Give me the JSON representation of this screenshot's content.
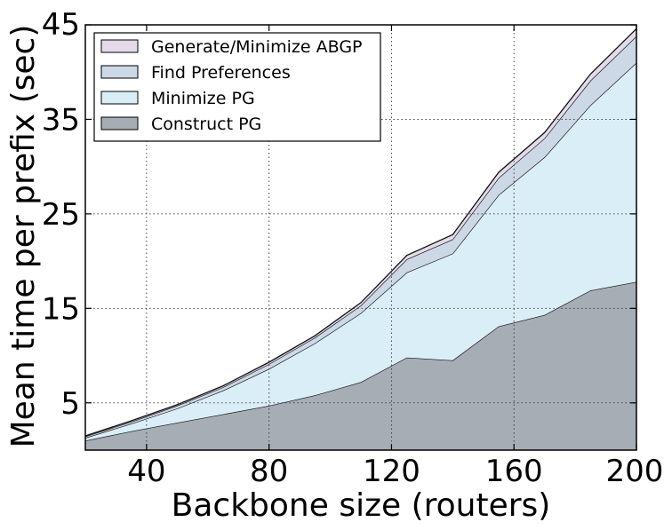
{
  "chart_data": {
    "type": "area",
    "stacked": true,
    "xlabel": "Backbone size (routers)",
    "ylabel": "Mean time per prefix (sec)",
    "xlim": [
      20,
      200
    ],
    "ylim": [
      0,
      45
    ],
    "xticks": [
      40,
      80,
      120,
      160,
      200
    ],
    "yticks": [
      5,
      15,
      25,
      35,
      45
    ],
    "grid": true,
    "legend_position": "top-left",
    "x": [
      20,
      35,
      50,
      65,
      80,
      95,
      110,
      125,
      140,
      155,
      170,
      185,
      200
    ],
    "series": [
      {
        "name": "Construct PG",
        "color": "#a6adb5",
        "values": [
          1.0,
          2.0,
          2.9,
          3.8,
          4.7,
          5.8,
          7.2,
          9.8,
          9.5,
          13.1,
          14.3,
          16.9,
          17.8
        ]
      },
      {
        "name": "Minimize PG",
        "color": "#daeef8",
        "values": [
          0.3,
          0.8,
          1.5,
          2.5,
          3.9,
          5.5,
          7.3,
          9.0,
          11.3,
          13.9,
          16.7,
          19.6,
          23.2
        ]
      },
      {
        "name": "Find Preferences",
        "color": "#ccd8e6",
        "values": [
          0.15,
          0.2,
          0.3,
          0.35,
          0.5,
          0.6,
          0.8,
          1.4,
          1.5,
          1.8,
          2.0,
          2.6,
          2.8
        ]
      },
      {
        "name": "Generate/Minimize ABGP",
        "color": "#e4daea",
        "values": [
          0.05,
          0.1,
          0.1,
          0.15,
          0.2,
          0.2,
          0.3,
          0.4,
          0.5,
          0.6,
          0.6,
          0.7,
          0.8
        ]
      }
    ],
    "legend_order": [
      "Generate/Minimize ABGP",
      "Find Preferences",
      "Minimize PG",
      "Construct PG"
    ]
  }
}
